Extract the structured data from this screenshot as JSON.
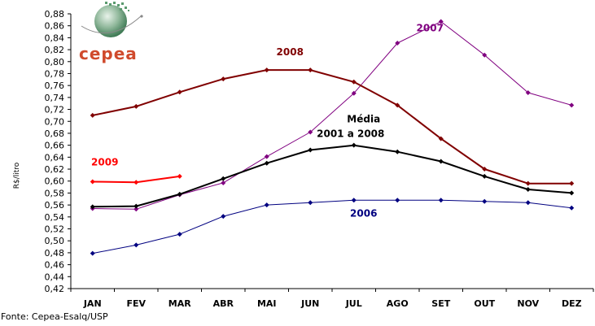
{
  "chart_data": {
    "type": "line",
    "categories": [
      "JAN",
      "FEV",
      "MAR",
      "ABR",
      "MAI",
      "JUN",
      "JUL",
      "AGO",
      "SET",
      "OUT",
      "NOV",
      "DEZ"
    ],
    "ylabel": "R$/litro",
    "ylim": [
      0.42,
      0.88
    ],
    "yticks": [
      "0,42",
      "0,44",
      "0,46",
      "0,48",
      "0,50",
      "0,52",
      "0,54",
      "0,56",
      "0,58",
      "0,60",
      "0,62",
      "0,64",
      "0,66",
      "0,68",
      "0,70",
      "0,72",
      "0,74",
      "0,76",
      "0,78",
      "0,80",
      "0,82",
      "0,84",
      "0,86",
      "0,88"
    ],
    "series": [
      {
        "name": "2006",
        "label": "2006",
        "color": "#000080",
        "width": 1,
        "values": [
          0.479,
          0.493,
          0.511,
          0.541,
          0.56,
          0.564,
          0.568,
          0.568,
          0.568,
          0.566,
          0.564,
          0.555
        ]
      },
      {
        "name": "2007",
        "label": "2007",
        "color": "#800080",
        "width": 1,
        "values": [
          0.554,
          0.553,
          0.577,
          0.597,
          0.641,
          0.682,
          0.747,
          0.831,
          0.867,
          0.811,
          0.748,
          0.727
        ]
      },
      {
        "name": "2008",
        "label": "2008",
        "color": "#800000",
        "width": 2,
        "values": [
          0.71,
          0.725,
          0.749,
          0.771,
          0.786,
          0.786,
          0.766,
          0.727,
          0.671,
          0.62,
          0.596,
          0.596
        ]
      },
      {
        "name": "2009",
        "label": "2009",
        "color": "#ff0000",
        "width": 2,
        "values": [
          0.599,
          0.598,
          0.608,
          null,
          null,
          null,
          null,
          null,
          null,
          null,
          null,
          null
        ]
      },
      {
        "name": "Média 2001 a 2008",
        "label_lines": [
          "Média",
          "2001 a 2008"
        ],
        "color": "#000000",
        "width": 2,
        "values": [
          0.557,
          0.558,
          0.578,
          0.604,
          0.63,
          0.652,
          0.66,
          0.649,
          0.633,
          0.608,
          0.586,
          0.58
        ]
      }
    ]
  },
  "logo": {
    "text": "cepea"
  },
  "source": "Fonte: Cepea-Esalq/USP"
}
